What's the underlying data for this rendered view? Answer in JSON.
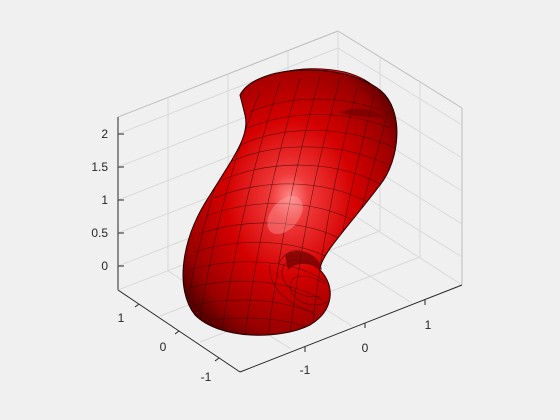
{
  "figure": {
    "background": "#f0f0f0"
  },
  "axes": {
    "z_ticks": [
      "2",
      "1.5",
      "1",
      "0.5",
      "0"
    ],
    "y_ticks": [
      "1",
      "0",
      "-1"
    ],
    "x_ticks": [
      "-1",
      "0",
      "1"
    ],
    "grid": true,
    "box": true
  },
  "surface": {
    "type": "surface",
    "description": "curved tube / helical torus segment",
    "face_color": "#e00000",
    "edge_color": "#000000",
    "lighting": true
  }
}
